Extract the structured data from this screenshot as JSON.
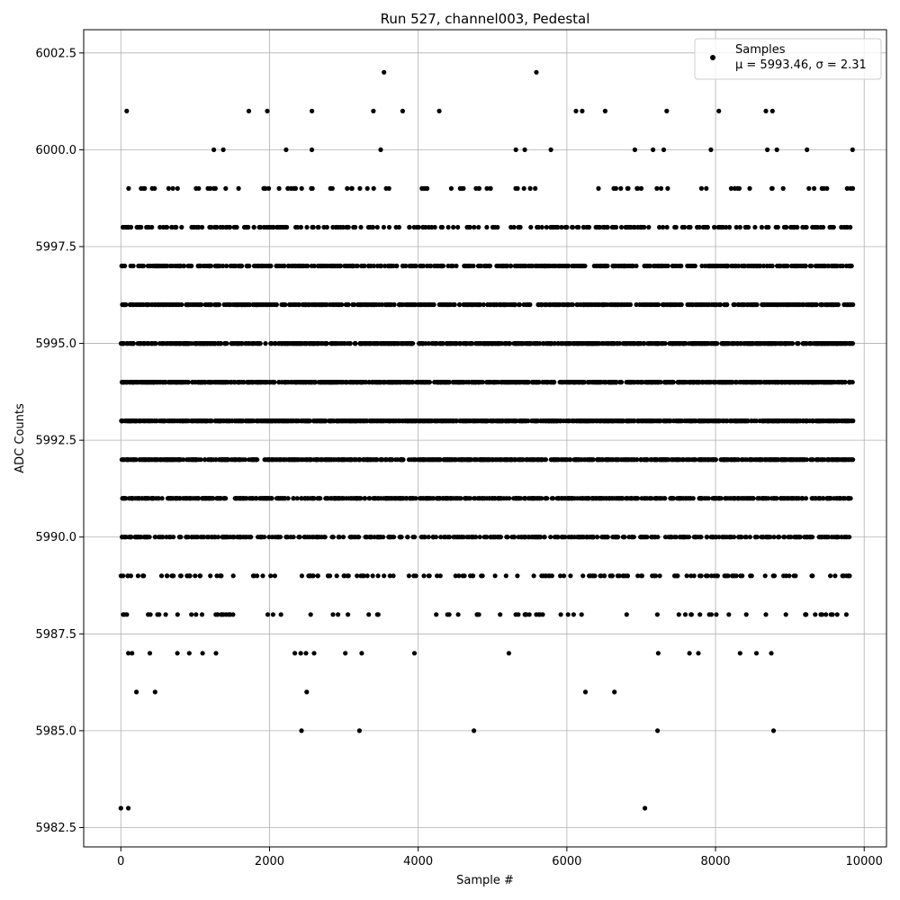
{
  "chart_data": {
    "type": "scatter",
    "title": "Run 527, channel003, Pedestal",
    "xlabel": "Sample #",
    "ylabel": "ADC Counts",
    "xlim": [
      -500,
      10300
    ],
    "ylim": [
      5982,
      6003.1
    ],
    "xticks": [
      0,
      2000,
      4000,
      6000,
      8000,
      10000
    ],
    "xtick_labels": [
      "0",
      "2000",
      "4000",
      "6000",
      "8000",
      "10000"
    ],
    "yticks": [
      5982.5,
      5985.0,
      5987.5,
      5990.0,
      5992.5,
      5995.0,
      5997.5,
      6000.0,
      6002.5
    ],
    "ytick_labels": [
      "5982.5",
      "5985.0",
      "5987.5",
      "5990.0",
      "5992.5",
      "5995.0",
      "5997.5",
      "6000.0",
      "6002.5"
    ],
    "grid": true,
    "legend_position": "top-right",
    "marker_color": "#000000",
    "series": [
      {
        "name": "Samples",
        "stats_label": "μ = 5993.46, σ = 2.31",
        "mean": 5993.46,
        "std": 2.31,
        "x_range": [
          0,
          9850
        ],
        "values": [
          5983,
          5985,
          5986,
          5987,
          5988,
          5989,
          5990,
          5991,
          5992,
          5993,
          5994,
          5995,
          5996,
          5997,
          5998,
          5999,
          6000,
          6001,
          6002
        ],
        "sparse_points": [
          {
            "x": 0,
            "y": 5983
          },
          {
            "x": 100,
            "y": 5983
          },
          {
            "x": 7050,
            "y": 5983
          },
          {
            "x": 2430,
            "y": 5985
          },
          {
            "x": 3210,
            "y": 5985
          },
          {
            "x": 4750,
            "y": 5985
          },
          {
            "x": 7220,
            "y": 5985
          },
          {
            "x": 8780,
            "y": 5985
          },
          {
            "x": 210,
            "y": 5986
          },
          {
            "x": 460,
            "y": 5986
          },
          {
            "x": 2500,
            "y": 5986
          },
          {
            "x": 6250,
            "y": 5986
          },
          {
            "x": 6640,
            "y": 5986
          },
          {
            "x": 100,
            "y": 5987
          },
          {
            "x": 150,
            "y": 5987
          },
          {
            "x": 390,
            "y": 5987
          },
          {
            "x": 760,
            "y": 5987
          },
          {
            "x": 920,
            "y": 5987
          },
          {
            "x": 1100,
            "y": 5987
          },
          {
            "x": 1280,
            "y": 5987
          },
          {
            "x": 2340,
            "y": 5987
          },
          {
            "x": 2420,
            "y": 5987
          },
          {
            "x": 2490,
            "y": 5987
          },
          {
            "x": 2600,
            "y": 5987
          },
          {
            "x": 3020,
            "y": 5987
          },
          {
            "x": 3240,
            "y": 5987
          },
          {
            "x": 3950,
            "y": 5987
          },
          {
            "x": 5220,
            "y": 5987
          },
          {
            "x": 7230,
            "y": 5987
          },
          {
            "x": 7650,
            "y": 5987
          },
          {
            "x": 7770,
            "y": 5987
          },
          {
            "x": 8330,
            "y": 5987
          },
          {
            "x": 8550,
            "y": 5987
          },
          {
            "x": 8750,
            "y": 5987
          },
          {
            "x": 3540,
            "y": 6002
          },
          {
            "x": 5590,
            "y": 6002
          }
        ],
        "row_density": [
          {
            "y": 5988,
            "count": 80
          },
          {
            "y": 5989,
            "count": 170
          },
          {
            "y": 5990,
            "count": 420
          },
          {
            "y": 5991,
            "count": 640
          },
          {
            "y": 5992,
            "count": 900
          },
          {
            "y": 5993,
            "count": 1000
          },
          {
            "y": 5994,
            "count": 950
          },
          {
            "y": 5995,
            "count": 820
          },
          {
            "y": 5996,
            "count": 640
          },
          {
            "y": 5997,
            "count": 520
          },
          {
            "y": 5998,
            "count": 260
          },
          {
            "y": 5999,
            "count": 90
          },
          {
            "y": 6000,
            "count": 16
          },
          {
            "y": 6001,
            "count": 14
          }
        ]
      }
    ]
  }
}
